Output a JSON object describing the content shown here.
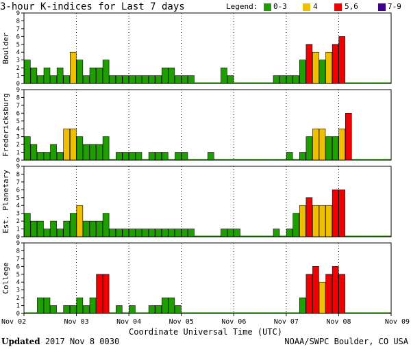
{
  "title": "3-hour K-indices for Last 7 days",
  "legend": {
    "label": "Legend:",
    "items": [
      {
        "label": "0-3",
        "color": "#1f9e00"
      },
      {
        "label": "4",
        "color": "#f0c000"
      },
      {
        "label": "5,6",
        "color": "#f00000"
      },
      {
        "label": "7-9",
        "color": "#400090"
      }
    ]
  },
  "xlabel": "Coordinate Universal Time (UTC)",
  "footer": {
    "updated_label": "Updated",
    "updated_value": "2017 Nov  8 0030",
    "source": "NOAA/SWPC Boulder, CO USA"
  },
  "chart_data": {
    "type": "bar",
    "x_ticks": [
      "Nov 02",
      "Nov 03",
      "Nov 04",
      "Nov 05",
      "Nov 06",
      "Nov 07",
      "Nov 08",
      "Nov 09"
    ],
    "ylim": [
      0,
      9
    ],
    "y_ticks": [
      0,
      1,
      2,
      3,
      4,
      5,
      6,
      7,
      8,
      9
    ],
    "bins_per_day": 8,
    "color_scale": {
      "0-3": "#1f9e00",
      "4": "#f0c000",
      "5-6": "#f00000",
      "7-9": "#400090"
    },
    "panels": [
      {
        "name": "Boulder",
        "values": [
          3,
          2,
          1,
          2,
          1,
          2,
          1,
          4,
          3,
          1,
          2,
          2,
          3,
          1,
          1,
          1,
          1,
          1,
          1,
          1,
          1,
          2,
          2,
          1,
          1,
          1,
          0,
          0,
          0,
          0,
          2,
          1,
          0,
          0,
          0,
          0,
          0,
          0,
          1,
          1,
          1,
          1,
          3,
          5,
          4,
          3,
          4,
          5,
          6,
          0,
          0,
          0,
          0,
          0,
          0,
          0,
          0,
          0,
          0,
          0,
          0,
          0,
          0,
          0
        ]
      },
      {
        "name": "Fredericksburg",
        "values": [
          3,
          2,
          1,
          1,
          2,
          1,
          4,
          4,
          3,
          2,
          2,
          2,
          3,
          0,
          1,
          1,
          1,
          1,
          0,
          1,
          1,
          1,
          0,
          1,
          1,
          0,
          0,
          0,
          1,
          0,
          0,
          0,
          0,
          0,
          0,
          0,
          0,
          0,
          0,
          0,
          1,
          0,
          1,
          3,
          4,
          4,
          3,
          3,
          4,
          6,
          0,
          0,
          0,
          0,
          0,
          0,
          0,
          0,
          0,
          0,
          0,
          0,
          0,
          0
        ]
      },
      {
        "name": "Est. Planetary",
        "values": [
          3,
          2,
          2,
          1,
          2,
          1,
          2,
          3,
          4,
          2,
          2,
          2,
          3,
          1,
          1,
          1,
          1,
          1,
          1,
          1,
          1,
          1,
          1,
          1,
          1,
          1,
          0,
          0,
          0,
          0,
          1,
          1,
          1,
          0,
          0,
          0,
          0,
          0,
          1,
          0,
          1,
          3,
          4,
          5,
          4,
          4,
          4,
          6,
          6,
          0,
          0,
          0,
          0,
          0,
          0,
          0,
          0,
          0,
          0,
          0,
          0,
          0,
          0,
          0
        ]
      },
      {
        "name": "College",
        "values": [
          0,
          0,
          2,
          2,
          1,
          0,
          1,
          1,
          2,
          1,
          2,
          5,
          5,
          0,
          1,
          0,
          1,
          0,
          0,
          1,
          1,
          2,
          2,
          1,
          0,
          0,
          0,
          0,
          0,
          0,
          0,
          0,
          0,
          0,
          0,
          0,
          0,
          0,
          0,
          0,
          0,
          0,
          2,
          5,
          6,
          4,
          5,
          6,
          5,
          0,
          0,
          0,
          0,
          0,
          0,
          0,
          0,
          0,
          0,
          0,
          0,
          0,
          0,
          0
        ]
      }
    ]
  }
}
